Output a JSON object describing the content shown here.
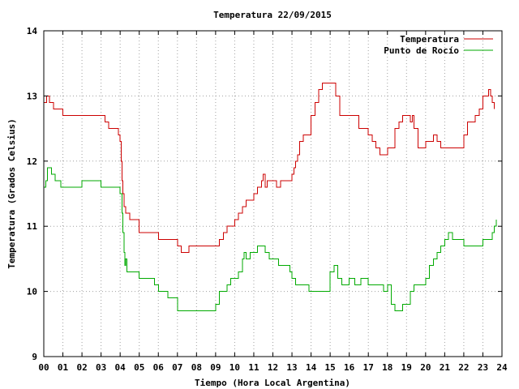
{
  "chart_data": {
    "type": "line",
    "title": "Temperatura 22/09/2015",
    "xlabel": "Tiempo (Hora Local Argentina)",
    "ylabel": "Temperatura (Grados Celsius)",
    "xlim": [
      0,
      24
    ],
    "ylim": [
      9,
      14
    ],
    "grid": true,
    "legend_position": "top-right",
    "x_ticks": [
      "00",
      "01",
      "02",
      "03",
      "04",
      "05",
      "06",
      "07",
      "08",
      "09",
      "10",
      "11",
      "12",
      "13",
      "14",
      "15",
      "16",
      "17",
      "18",
      "19",
      "20",
      "21",
      "22",
      "23",
      "24"
    ],
    "y_ticks": [
      "9",
      "10",
      "11",
      "12",
      "13",
      "14"
    ],
    "series": [
      {
        "name": "Temperatura",
        "color": "#cc0000",
        "x": [
          0.0,
          0.15,
          0.3,
          0.5,
          0.9,
          1.0,
          3.0,
          3.2,
          3.4,
          3.6,
          3.9,
          4.0,
          4.05,
          4.1,
          4.15,
          4.2,
          4.3,
          4.5,
          4.7,
          5.0,
          5.3,
          5.8,
          6.0,
          6.5,
          7.0,
          7.2,
          7.4,
          7.6,
          8.0,
          8.5,
          9.0,
          9.2,
          9.4,
          9.6,
          9.8,
          10.0,
          10.2,
          10.4,
          10.6,
          10.8,
          11.0,
          11.2,
          11.4,
          11.5,
          11.6,
          11.7,
          11.9,
          12.0,
          12.2,
          12.4,
          12.6,
          12.8,
          13.0,
          13.1,
          13.2,
          13.3,
          13.4,
          13.6,
          13.8,
          14.0,
          14.2,
          14.4,
          14.6,
          14.8,
          15.0,
          15.3,
          15.5,
          15.8,
          16.0,
          16.2,
          16.5,
          16.8,
          17.0,
          17.2,
          17.4,
          17.6,
          17.8,
          18.0,
          18.2,
          18.4,
          18.6,
          18.8,
          19.0,
          19.2,
          19.3,
          19.4,
          19.6,
          20.0,
          20.2,
          20.4,
          20.6,
          20.8,
          21.0,
          21.4,
          21.6,
          21.8,
          22.0,
          22.2,
          22.4,
          22.6,
          22.8,
          23.0,
          23.2,
          23.3,
          23.4,
          23.5,
          23.6
        ],
        "y": [
          12.9,
          13.0,
          12.9,
          12.8,
          12.8,
          12.7,
          12.7,
          12.6,
          12.5,
          12.5,
          12.4,
          12.3,
          12.0,
          11.7,
          11.5,
          11.3,
          11.2,
          11.1,
          11.1,
          10.9,
          10.9,
          10.9,
          10.8,
          10.8,
          10.7,
          10.6,
          10.6,
          10.7,
          10.7,
          10.7,
          10.7,
          10.8,
          10.9,
          11.0,
          11.0,
          11.1,
          11.2,
          11.3,
          11.4,
          11.4,
          11.5,
          11.6,
          11.7,
          11.8,
          11.6,
          11.7,
          11.7,
          11.7,
          11.6,
          11.7,
          11.7,
          11.7,
          11.8,
          11.9,
          12.0,
          12.1,
          12.3,
          12.4,
          12.4,
          12.7,
          12.9,
          13.1,
          13.2,
          13.2,
          13.2,
          13.0,
          12.7,
          12.7,
          12.7,
          12.7,
          12.5,
          12.5,
          12.4,
          12.3,
          12.2,
          12.1,
          12.1,
          12.2,
          12.2,
          12.5,
          12.6,
          12.7,
          12.7,
          12.6,
          12.7,
          12.5,
          12.2,
          12.3,
          12.3,
          12.4,
          12.3,
          12.2,
          12.2,
          12.2,
          12.2,
          12.2,
          12.4,
          12.6,
          12.6,
          12.7,
          12.8,
          13.0,
          13.0,
          13.1,
          13.0,
          12.9,
          12.8
        ]
      },
      {
        "name": "Punto de Rocío",
        "color": "#00aa00",
        "x": [
          0.0,
          0.1,
          0.2,
          0.4,
          0.6,
          0.9,
          1.0,
          1.5,
          2.0,
          2.2,
          2.5,
          3.0,
          3.2,
          3.5,
          3.8,
          4.0,
          4.1,
          4.15,
          4.2,
          4.25,
          4.3,
          4.35,
          4.5,
          5.0,
          5.4,
          5.8,
          6.0,
          6.5,
          7.0,
          7.5,
          8.0,
          8.5,
          9.0,
          9.2,
          9.4,
          9.6,
          9.8,
          10.0,
          10.2,
          10.4,
          10.5,
          10.6,
          10.8,
          11.0,
          11.2,
          11.4,
          11.6,
          11.8,
          12.0,
          12.3,
          12.6,
          12.9,
          13.0,
          13.2,
          13.3,
          13.5,
          13.7,
          13.9,
          14.0,
          14.2,
          14.5,
          15.0,
          15.2,
          15.4,
          15.6,
          15.8,
          16.0,
          16.3,
          16.6,
          16.9,
          17.0,
          17.2,
          17.5,
          17.8,
          18.0,
          18.2,
          18.4,
          18.6,
          18.8,
          19.0,
          19.2,
          19.4,
          19.6,
          19.8,
          20.0,
          20.2,
          20.4,
          20.6,
          20.8,
          21.0,
          21.2,
          21.4,
          21.6,
          21.8,
          22.0,
          22.3,
          22.6,
          22.9,
          23.0,
          23.2,
          23.4,
          23.5,
          23.6,
          23.7
        ],
        "y": [
          11.6,
          11.7,
          11.9,
          11.8,
          11.7,
          11.6,
          11.6,
          11.6,
          11.7,
          11.7,
          11.7,
          11.6,
          11.6,
          11.6,
          11.6,
          11.5,
          11.2,
          10.9,
          10.6,
          10.4,
          10.5,
          10.3,
          10.3,
          10.2,
          10.2,
          10.1,
          10.0,
          9.9,
          9.7,
          9.7,
          9.7,
          9.7,
          9.8,
          10.0,
          10.0,
          10.1,
          10.2,
          10.2,
          10.3,
          10.5,
          10.6,
          10.5,
          10.6,
          10.6,
          10.7,
          10.7,
          10.6,
          10.5,
          10.5,
          10.4,
          10.4,
          10.3,
          10.2,
          10.1,
          10.1,
          10.1,
          10.1,
          10.0,
          10.0,
          10.0,
          10.0,
          10.3,
          10.4,
          10.2,
          10.1,
          10.1,
          10.2,
          10.1,
          10.2,
          10.2,
          10.1,
          10.1,
          10.1,
          10.0,
          10.1,
          9.8,
          9.7,
          9.7,
          9.8,
          9.8,
          10.0,
          10.1,
          10.1,
          10.1,
          10.2,
          10.4,
          10.5,
          10.6,
          10.7,
          10.8,
          10.9,
          10.8,
          10.8,
          10.8,
          10.7,
          10.7,
          10.7,
          10.7,
          10.8,
          10.8,
          10.8,
          10.9,
          11.0,
          11.1
        ]
      }
    ]
  }
}
